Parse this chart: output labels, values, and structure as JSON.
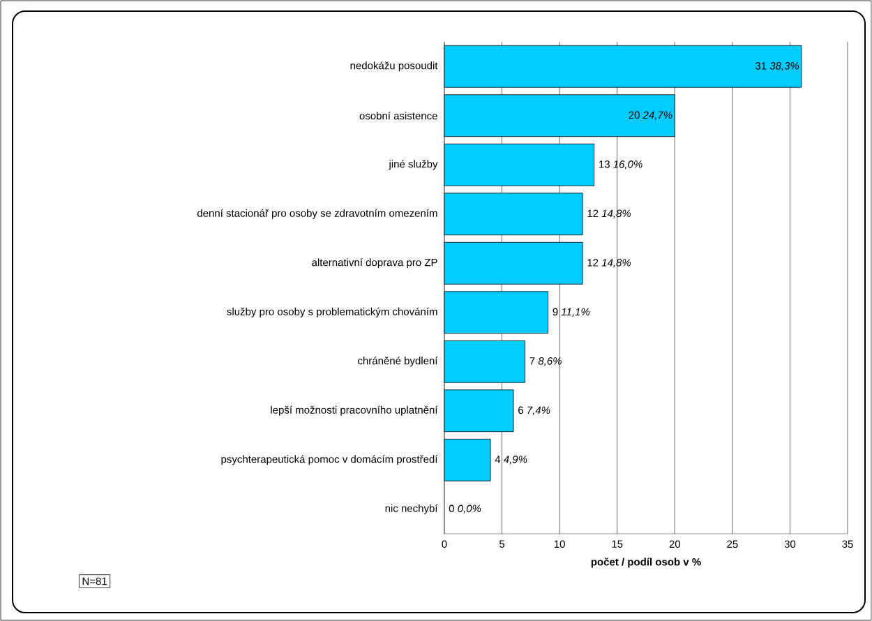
{
  "chart_data": {
    "type": "bar",
    "orientation": "horizontal",
    "categories": [
      "nedokážu posoudit",
      "osobní asistence",
      "jiné služby",
      "denní stacionář pro osoby se zdravotním omezením",
      "alternativní doprava pro ZP",
      "služby pro osoby s problematickým chováním",
      "chráněné bydlení",
      "lepší možnosti pracovního uplatnění",
      "psychterapeutická pomoc v domácím prostředí",
      "nic nechybí"
    ],
    "values": [
      31,
      20,
      13,
      12,
      12,
      9,
      7,
      6,
      4,
      0
    ],
    "value_labels": [
      "31  *38,3%*",
      "20 *24,7%*",
      "13  *16,0%*",
      "12    *14,8%*",
      "12    *14,8%*",
      "9    *11,1%*",
      "7     *8,6%*",
      "6    *7,4%*",
      "4    *4,9%*",
      "0    *0,0%*"
    ],
    "color": "#00ccff",
    "xlim": [
      0,
      35
    ],
    "xticks": [
      0,
      5,
      10,
      15,
      20,
      25,
      30,
      35
    ],
    "xlabel": "**počet / podíl osob v %**",
    "grid": "x",
    "annotations": [
      "N=81"
    ]
  }
}
